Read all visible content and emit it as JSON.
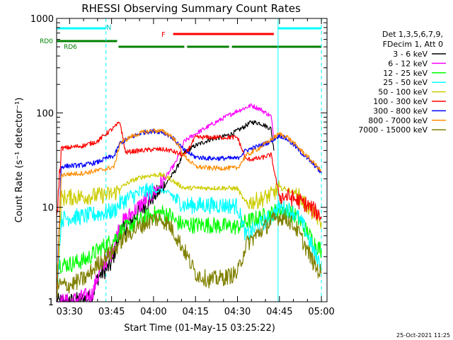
{
  "chart_data": {
    "type": "line",
    "title": "RHESSI Observing Summary Count Rates",
    "xlabel": "Start Time (01-May-15 03:25:22)",
    "ylabel": "Count Rate (s⁻¹ detector⁻¹)",
    "y_scale": "log",
    "ylim": [
      1,
      1000
    ],
    "xlim": [
      "03:25:22",
      "05:02:00"
    ],
    "x_ticks": [
      "03:30",
      "03:45",
      "04:00",
      "04:15",
      "04:30",
      "04:45",
      "05:00"
    ],
    "y_ticks": [
      "1",
      "10",
      "100",
      "1000"
    ],
    "grid": false,
    "legend_position": "right",
    "legend_header": [
      "Det 1,3,5,6,7,9,",
      "FDecim 1, Att 0"
    ],
    "timestamp": "25-Oct-2021 11:25",
    "annotations": {
      "N": "N",
      "F": "F",
      "RD0": "RD0",
      "RD6": "RD6"
    },
    "flag_bars": [
      {
        "label": "N",
        "color": "#00ffff",
        "segments": [
          [
            "03:25:22",
            "03:43:00"
          ],
          [
            "04:44:30",
            "05:00:00"
          ]
        ]
      },
      {
        "label": "F",
        "color": "#ff0000",
        "segments": [
          [
            "04:07:00",
            "04:43:00"
          ]
        ]
      },
      {
        "label": "RD0",
        "color": "#008000",
        "segments": [
          [
            "03:25:22",
            "03:47:00"
          ]
        ]
      },
      {
        "label": "RD6",
        "color": "#008000",
        "segments": [
          [
            "03:47:30",
            "04:11:00"
          ],
          [
            "04:12:00",
            "04:27:00"
          ],
          [
            "04:28:00",
            "05:00:00"
          ]
        ]
      }
    ],
    "night_boundaries": [
      "03:25:22",
      "03:43:00",
      "04:44:30",
      "05:00:00"
    ],
    "series": [
      {
        "name": "3 - 6 keV",
        "color": "#000000",
        "points": [
          [
            "03:25:22",
            1
          ],
          [
            "03:30",
            1
          ],
          [
            "03:38",
            1.1
          ],
          [
            "03:40",
            1.8
          ],
          [
            "03:45",
            2.5
          ],
          [
            "03:48",
            5.5
          ],
          [
            "03:52",
            7
          ],
          [
            "03:56",
            10
          ],
          [
            "04:00",
            13
          ],
          [
            "04:04",
            17
          ],
          [
            "04:08",
            25
          ],
          [
            "04:11",
            38
          ],
          [
            "04:15",
            45
          ],
          [
            "04:20",
            52
          ],
          [
            "04:25",
            56
          ],
          [
            "04:28",
            60
          ],
          [
            "04:32",
            70
          ],
          [
            "04:35",
            80
          ],
          [
            "04:38",
            78
          ],
          [
            "04:42",
            68
          ],
          [
            "04:43",
            40
          ]
        ]
      },
      {
        "name": "6 - 12 keV",
        "color": "#ff00ff",
        "points": [
          [
            "03:25:22",
            1
          ],
          [
            "03:30",
            1
          ],
          [
            "03:38",
            1.2
          ],
          [
            "03:41",
            2.2
          ],
          [
            "03:45",
            3.3
          ],
          [
            "03:48",
            6.5
          ],
          [
            "03:52",
            8.5
          ],
          [
            "03:56",
            11
          ],
          [
            "04:00",
            14
          ],
          [
            "04:04",
            20
          ],
          [
            "04:08",
            30
          ],
          [
            "04:11",
            50
          ],
          [
            "04:15",
            60
          ],
          [
            "04:20",
            73
          ],
          [
            "04:25",
            88
          ],
          [
            "04:30",
            105
          ],
          [
            "04:35",
            120
          ],
          [
            "04:38",
            110
          ],
          [
            "04:42",
            92
          ],
          [
            "04:43",
            55
          ]
        ]
      },
      {
        "name": "12 - 25 keV",
        "color": "#00ff00",
        "points": [
          [
            "03:25:22",
            2.5
          ],
          [
            "03:30",
            2.5
          ],
          [
            "03:36",
            2.8
          ],
          [
            "03:40",
            3.5
          ],
          [
            "03:43",
            4
          ],
          [
            "03:46",
            4.6
          ],
          [
            "03:48",
            5.5
          ],
          [
            "03:52",
            6.5
          ],
          [
            "03:56",
            7.5
          ],
          [
            "04:00",
            8.5
          ],
          [
            "04:03",
            8.8
          ],
          [
            "04:06",
            8.2
          ],
          [
            "04:08",
            7
          ],
          [
            "04:11",
            6.5
          ],
          [
            "04:15",
            6.5
          ],
          [
            "04:20",
            6.5
          ],
          [
            "04:25",
            6.3
          ],
          [
            "04:30",
            6.2
          ],
          [
            "04:33",
            7
          ],
          [
            "04:38",
            7.8
          ],
          [
            "04:42",
            8.5
          ],
          [
            "04:45",
            9.5
          ],
          [
            "04:48",
            9
          ],
          [
            "04:51",
            8
          ],
          [
            "04:54",
            6
          ],
          [
            "04:58",
            4
          ],
          [
            "05:00",
            3.5
          ]
        ]
      },
      {
        "name": "25 - 50 keV",
        "color": "#00ffff",
        "points": [
          [
            "03:25:22",
            1
          ],
          [
            "03:27",
            7.5
          ],
          [
            "03:30",
            7.8
          ],
          [
            "03:35",
            8
          ],
          [
            "03:40",
            8.5
          ],
          [
            "03:43",
            8.8
          ],
          [
            "03:46",
            9.2
          ],
          [
            "03:48",
            11
          ],
          [
            "03:52",
            13
          ],
          [
            "03:56",
            14.5
          ],
          [
            "04:00",
            15
          ],
          [
            "04:03",
            15
          ],
          [
            "04:06",
            14
          ],
          [
            "04:08",
            12
          ],
          [
            "04:11",
            10.5
          ],
          [
            "04:15",
            10.5
          ],
          [
            "04:20",
            10.5
          ],
          [
            "04:25",
            10.5
          ],
          [
            "04:30",
            10.3
          ],
          [
            "04:33",
            5
          ],
          [
            "04:38",
            6.5
          ],
          [
            "04:42",
            8
          ],
          [
            "04:45",
            10
          ],
          [
            "04:48",
            9.5
          ],
          [
            "04:51",
            8.5
          ],
          [
            "04:54",
            6
          ],
          [
            "04:58",
            3
          ],
          [
            "05:00",
            2.5
          ]
        ]
      },
      {
        "name": "50 - 100 keV",
        "color": "#cccc00",
        "points": [
          [
            "03:25:22",
            1
          ],
          [
            "03:27",
            12.5
          ],
          [
            "03:30",
            12.8
          ],
          [
            "03:35",
            13
          ],
          [
            "03:40",
            13.3
          ],
          [
            "03:43",
            13.5
          ],
          [
            "03:46",
            14
          ],
          [
            "03:48",
            16
          ],
          [
            "03:52",
            19
          ],
          [
            "03:56",
            21
          ],
          [
            "04:00",
            22
          ],
          [
            "04:03",
            22
          ],
          [
            "04:06",
            20
          ],
          [
            "04:08",
            18
          ],
          [
            "04:11",
            16
          ],
          [
            "04:15",
            16
          ],
          [
            "04:20",
            16
          ],
          [
            "04:25",
            16
          ],
          [
            "04:30",
            15.8
          ],
          [
            "04:33",
            11
          ],
          [
            "04:38",
            12
          ],
          [
            "04:42",
            13.5
          ],
          [
            "04:45",
            16
          ],
          [
            "04:48",
            15.5
          ],
          [
            "04:51",
            14
          ],
          [
            "04:54",
            11
          ],
          [
            "04:58",
            8
          ],
          [
            "05:00",
            7
          ]
        ]
      },
      {
        "name": "100 - 300 keV",
        "color": "#ff0000",
        "points": [
          [
            "03:25:22",
            7
          ],
          [
            "03:27",
            42
          ],
          [
            "03:30",
            43
          ],
          [
            "03:35",
            45
          ],
          [
            "03:40",
            50
          ],
          [
            "03:43",
            60
          ],
          [
            "03:46",
            70
          ],
          [
            "03:48",
            80
          ],
          [
            "03:50",
            38
          ],
          [
            "03:52",
            39
          ],
          [
            "03:56",
            40
          ],
          [
            "04:00",
            41
          ],
          [
            "04:03",
            41
          ],
          [
            "04:06",
            40
          ],
          [
            "04:08",
            38
          ],
          [
            "04:11",
            35
          ],
          [
            "04:15",
            55
          ],
          [
            "04:20",
            55
          ],
          [
            "04:25",
            55
          ],
          [
            "04:30",
            55
          ],
          [
            "04:33",
            32
          ],
          [
            "04:38",
            33
          ],
          [
            "04:42",
            36
          ],
          [
            "04:45",
            13
          ],
          [
            "04:48",
            13
          ],
          [
            "04:51",
            12
          ],
          [
            "04:54",
            11
          ],
          [
            "04:58",
            9
          ],
          [
            "05:00",
            8
          ]
        ]
      },
      {
        "name": "300 - 800 keV",
        "color": "#0000ff",
        "points": [
          [
            "03:25:22",
            1
          ],
          [
            "03:27",
            27
          ],
          [
            "03:30",
            27.5
          ],
          [
            "03:35",
            28
          ],
          [
            "03:40",
            30
          ],
          [
            "03:43",
            33
          ],
          [
            "03:46",
            35
          ],
          [
            "03:48",
            48
          ],
          [
            "03:52",
            55
          ],
          [
            "03:56",
            62
          ],
          [
            "04:00",
            64
          ],
          [
            "04:03",
            63
          ],
          [
            "04:06",
            57
          ],
          [
            "04:08",
            50
          ],
          [
            "04:11",
            40
          ],
          [
            "04:15",
            34
          ],
          [
            "04:20",
            33
          ],
          [
            "04:25",
            33
          ],
          [
            "04:30",
            33
          ],
          [
            "04:33",
            40
          ],
          [
            "04:38",
            45
          ],
          [
            "04:42",
            50
          ],
          [
            "04:45",
            58
          ],
          [
            "04:48",
            52
          ],
          [
            "04:51",
            43
          ],
          [
            "04:54",
            35
          ],
          [
            "04:58",
            27
          ],
          [
            "05:00",
            23
          ]
        ]
      },
      {
        "name": "800 - 7000 keV",
        "color": "#ff8c00",
        "points": [
          [
            "03:25:22",
            1
          ],
          [
            "03:27",
            22
          ],
          [
            "03:30",
            22.5
          ],
          [
            "03:35",
            23
          ],
          [
            "03:40",
            24.5
          ],
          [
            "03:43",
            25.5
          ],
          [
            "03:46",
            27
          ],
          [
            "03:48",
            48
          ],
          [
            "03:52",
            56
          ],
          [
            "03:56",
            62
          ],
          [
            "04:00",
            65
          ],
          [
            "04:03",
            64
          ],
          [
            "04:06",
            58
          ],
          [
            "04:08",
            50
          ],
          [
            "04:11",
            35
          ],
          [
            "04:15",
            27
          ],
          [
            "04:20",
            26
          ],
          [
            "04:25",
            26
          ],
          [
            "04:30",
            26
          ],
          [
            "04:33",
            35
          ],
          [
            "04:38",
            43
          ],
          [
            "04:42",
            52
          ],
          [
            "04:45",
            60
          ],
          [
            "04:48",
            55
          ],
          [
            "04:51",
            45
          ],
          [
            "04:54",
            37
          ],
          [
            "04:58",
            28
          ],
          [
            "05:00",
            24
          ]
        ]
      },
      {
        "name": "7000 - 15000 keV",
        "color": "#808000",
        "points": [
          [
            "03:25:22",
            1.5
          ],
          [
            "03:30",
            1.5
          ],
          [
            "03:36",
            1.8
          ],
          [
            "03:40",
            2.5
          ],
          [
            "03:43",
            3
          ],
          [
            "03:46",
            3.5
          ],
          [
            "03:48",
            4.3
          ],
          [
            "03:52",
            5.5
          ],
          [
            "03:56",
            6.5
          ],
          [
            "04:00",
            7.5
          ],
          [
            "04:03",
            7.5
          ],
          [
            "04:06",
            6.3
          ],
          [
            "04:08",
            5
          ],
          [
            "04:11",
            3.5
          ],
          [
            "04:15",
            2
          ],
          [
            "04:20",
            1.7
          ],
          [
            "04:25",
            1.8
          ],
          [
            "04:30",
            2
          ],
          [
            "04:33",
            4
          ],
          [
            "04:38",
            5.5
          ],
          [
            "04:42",
            7
          ],
          [
            "04:45",
            8
          ],
          [
            "04:48",
            7.5
          ],
          [
            "04:51",
            6
          ],
          [
            "04:54",
            4
          ],
          [
            "04:58",
            2.3
          ],
          [
            "05:00",
            2
          ]
        ]
      }
    ]
  }
}
